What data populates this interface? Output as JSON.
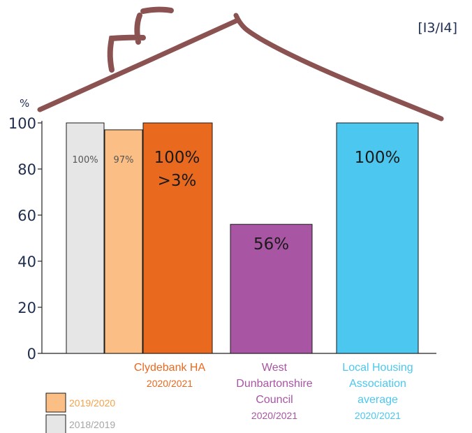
{
  "reference": "[I3/I4]",
  "chart_data": {
    "type": "bar",
    "ylabel": "%",
    "ylim": [
      0,
      100
    ],
    "yticks": [
      0,
      20,
      40,
      60,
      80,
      100
    ],
    "grid": false,
    "legend_position": "bottom-left",
    "bars": [
      {
        "group": "Clydebank HA",
        "period": "2018/2019",
        "value": 100,
        "label": "100%",
        "color": "#e6e6e6"
      },
      {
        "group": "Clydebank HA",
        "period": "2019/2020",
        "value": 97,
        "label": "97%",
        "color": "#fbbf86"
      },
      {
        "group": "Clydebank HA",
        "period": "2020/2021",
        "value": 100,
        "label": "100%",
        "sublabel": ">3%",
        "color": "#e9691f"
      },
      {
        "group": "West Dunbartonshire Council",
        "period": "2020/2021",
        "value": 56,
        "label": "56%",
        "color": "#a855a3"
      },
      {
        "group": "Local Housing Association average",
        "period": "2020/2021",
        "value": 100,
        "label": "100%",
        "color": "#4cc7ef"
      }
    ],
    "categories": [
      {
        "lines": [
          "Clydebank HA"
        ],
        "period": "2020/2021",
        "color": "#e9691f",
        "period_color": "#e9691f"
      },
      {
        "lines": [
          "West",
          "Dunbartonshire",
          "Council"
        ],
        "period": "2020/2021",
        "color": "#a855a3",
        "period_color": "#a855a3"
      },
      {
        "lines": [
          "Local Housing",
          "Association",
          "average"
        ],
        "period": "2020/2021",
        "color": "#4cc7ef",
        "period_color": "#4cc7ef"
      }
    ],
    "legend": [
      {
        "label": "2019/2020",
        "color": "#fbbf86",
        "text_color": "#f5a24a"
      },
      {
        "label": "2018/2019",
        "color": "#e6e6e6",
        "text_color": "#a6a6a6"
      }
    ]
  }
}
